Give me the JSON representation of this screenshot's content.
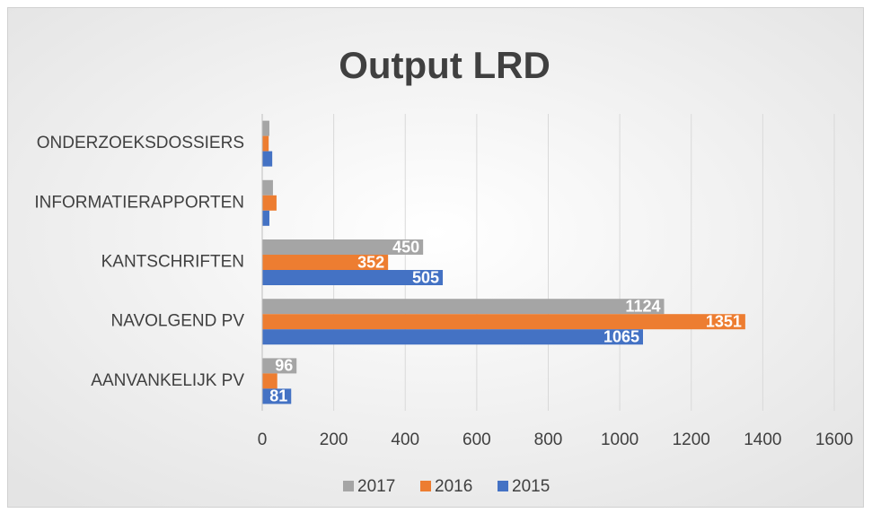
{
  "chart_data": {
    "type": "bar",
    "orientation": "horizontal",
    "title": "Output LRD",
    "categories": [
      "AANVANKELIJK PV",
      "NAVOLGEND PV",
      "KANTSCHRIFTEN",
      "INFORMATIERAPPORTEN",
      "ONDERZOEKSDOSSIERS"
    ],
    "series": [
      {
        "name": "2017",
        "color": "#a5a5a5",
        "values": [
          96,
          1124,
          450,
          30,
          20
        ],
        "value_labels": [
          "96",
          "1124",
          "450",
          null,
          null
        ]
      },
      {
        "name": "2016",
        "color": "#ed7d31",
        "values": [
          42,
          1351,
          352,
          40,
          18
        ],
        "value_labels": [
          null,
          "1351",
          "352",
          null,
          null
        ]
      },
      {
        "name": "2015",
        "color": "#4472c4",
        "values": [
          81,
          1065,
          505,
          20,
          28
        ],
        "value_labels": [
          "81",
          "1065",
          "505",
          null,
          null
        ]
      }
    ],
    "xlim": [
      0,
      1600
    ],
    "xticks": [
      0,
      200,
      400,
      600,
      800,
      1000,
      1200,
      1400,
      1600
    ],
    "grid": true,
    "legend": "bottom"
  }
}
